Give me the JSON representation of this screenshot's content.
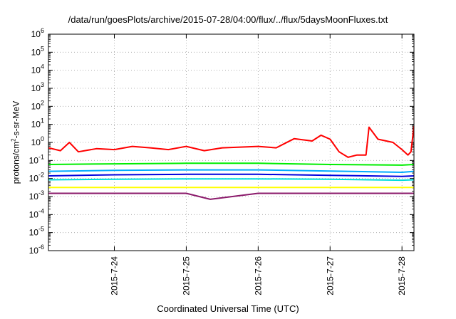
{
  "chart_data": {
    "type": "line",
    "title": "/data/run/goesPlots/archive/2015-07-28/04:00/flux/../flux/5daysMoonFluxes.txt",
    "xlabel": "Coordinated Universal Time (UTC)",
    "ylabel": "protons/cm2-s-sr-MeV",
    "ylabel_parts": {
      "pre": "protons/cm",
      "sup": "2",
      "post": "-s-sr-MeV"
    },
    "yscale": "log",
    "ylim": [
      1e-06,
      1000000.0
    ],
    "xlim": [
      "2015-07-23 02:00",
      "2015-07-28 04:00"
    ],
    "yticks": [
      {
        "base": "10",
        "exp": "-6"
      },
      {
        "base": "10",
        "exp": "-5"
      },
      {
        "base": "10",
        "exp": "-4"
      },
      {
        "base": "10",
        "exp": "-3"
      },
      {
        "base": "10",
        "exp": "-2"
      },
      {
        "base": "10",
        "exp": "-1"
      },
      {
        "base": "10",
        "exp": "0"
      },
      {
        "base": "10",
        "exp": "1"
      },
      {
        "base": "10",
        "exp": "2"
      },
      {
        "base": "10",
        "exp": "3"
      },
      {
        "base": "10",
        "exp": "4"
      },
      {
        "base": "10",
        "exp": "5"
      },
      {
        "base": "10",
        "exp": "6"
      }
    ],
    "xticks": [
      "2015-7-24",
      "2015-7-25",
      "2015-7-26",
      "2015-7-27",
      "2015-7-28"
    ],
    "grid": true,
    "series": [
      {
        "color": "#ff0000",
        "x": [
          "2015-07-23 02:00",
          "2015-07-23 06:00",
          "2015-07-23 09:00",
          "2015-07-23 12:00",
          "2015-07-23 18:00",
          "2015-07-24 00:00",
          "2015-07-24 06:00",
          "2015-07-24 12:00",
          "2015-07-24 18:00",
          "2015-07-25 00:00",
          "2015-07-25 06:00",
          "2015-07-25 12:00",
          "2015-07-25 18:00",
          "2015-07-26 00:00",
          "2015-07-26 06:00",
          "2015-07-26 09:00",
          "2015-07-26 12:00",
          "2015-07-26 18:00",
          "2015-07-26 21:00",
          "2015-07-27 00:00",
          "2015-07-27 03:00",
          "2015-07-27 06:00",
          "2015-07-27 09:00",
          "2015-07-27 12:00",
          "2015-07-27 13:00",
          "2015-07-27 16:00",
          "2015-07-27 21:00",
          "2015-07-28 00:00",
          "2015-07-28 02:00",
          "2015-07-28 03:00",
          "2015-07-28 04:00"
        ],
        "y": [
          0.5,
          0.35,
          1.0,
          0.3,
          0.45,
          0.4,
          0.6,
          0.5,
          0.4,
          0.6,
          0.35,
          0.5,
          0.55,
          0.6,
          0.5,
          0.9,
          1.6,
          1.2,
          2.5,
          1.5,
          0.3,
          0.15,
          0.2,
          0.2,
          7.0,
          1.5,
          1.0,
          0.4,
          0.2,
          0.3,
          8.0
        ]
      },
      {
        "color": "#00ee00",
        "x": [
          "2015-07-23 02:00",
          "2015-07-24 00:00",
          "2015-07-25 00:00",
          "2015-07-26 00:00",
          "2015-07-27 00:00",
          "2015-07-28 00:00",
          "2015-07-28 04:00"
        ],
        "y": [
          0.06,
          0.065,
          0.07,
          0.07,
          0.06,
          0.055,
          0.06
        ]
      },
      {
        "color": "#00aaff",
        "x": [
          "2015-07-23 02:00",
          "2015-07-24 00:00",
          "2015-07-25 00:00",
          "2015-07-26 00:00",
          "2015-07-27 00:00",
          "2015-07-28 00:00",
          "2015-07-28 04:00"
        ],
        "y": [
          0.025,
          0.028,
          0.03,
          0.03,
          0.026,
          0.022,
          0.025
        ]
      },
      {
        "color": "#0000dd",
        "x": [
          "2015-07-23 02:00",
          "2015-07-24 00:00",
          "2015-07-25 00:00",
          "2015-07-26 00:00",
          "2015-07-27 00:00",
          "2015-07-28 00:00",
          "2015-07-28 04:00"
        ],
        "y": [
          0.014,
          0.016,
          0.017,
          0.017,
          0.015,
          0.013,
          0.014
        ]
      },
      {
        "color": "#00dddd",
        "x": [
          "2015-07-23 02:00",
          "2015-07-24 00:00",
          "2015-07-25 00:00",
          "2015-07-26 00:00",
          "2015-07-27 00:00",
          "2015-07-28 00:00",
          "2015-07-28 04:00"
        ],
        "y": [
          0.0085,
          0.009,
          0.0095,
          0.0095,
          0.009,
          0.008,
          0.0085
        ]
      },
      {
        "color": "#ffff00",
        "x": [
          "2015-07-23 02:00",
          "2015-07-28 04:00"
        ],
        "y": [
          0.0032,
          0.0032
        ]
      },
      {
        "color": "#8b1a6b",
        "x": [
          "2015-07-23 02:00",
          "2015-07-24 00:00",
          "2015-07-25 00:00",
          "2015-07-25 08:00",
          "2015-07-26 00:00",
          "2015-07-27 00:00",
          "2015-07-28 00:00",
          "2015-07-28 04:00"
        ],
        "y": [
          0.0015,
          0.0015,
          0.0015,
          0.0007,
          0.0015,
          0.0015,
          0.0015,
          0.0015
        ]
      }
    ]
  }
}
